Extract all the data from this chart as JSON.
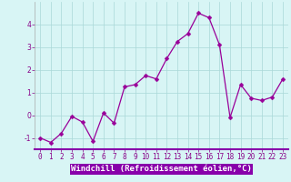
{
  "x": [
    0,
    1,
    2,
    3,
    4,
    5,
    6,
    7,
    8,
    9,
    10,
    11,
    12,
    13,
    14,
    15,
    16,
    17,
    18,
    19,
    20,
    21,
    22,
    23
  ],
  "y": [
    -1.0,
    -1.2,
    -0.8,
    -0.05,
    -0.3,
    -1.15,
    0.1,
    -0.35,
    1.25,
    1.35,
    1.75,
    1.6,
    2.5,
    3.25,
    3.6,
    4.5,
    4.3,
    3.1,
    -0.1,
    1.35,
    0.75,
    0.65,
    0.8,
    1.6
  ],
  "xlim": [
    -0.5,
    23.5
  ],
  "ylim": [
    -1.5,
    5.0
  ],
  "yticks": [
    -1,
    0,
    1,
    2,
    3,
    4
  ],
  "xticks": [
    0,
    1,
    2,
    3,
    4,
    5,
    6,
    7,
    8,
    9,
    10,
    11,
    12,
    13,
    14,
    15,
    16,
    17,
    18,
    19,
    20,
    21,
    22,
    23
  ],
  "xlabel": "Windchill (Refroidissement éolien,°C)",
  "line_color": "#990099",
  "marker": "D",
  "marker_size": 2.5,
  "bg_color": "#d8f5f5",
  "xlabel_bg_color": "#8800aa",
  "grid_color": "#aad8d8",
  "tick_label_fontsize": 5.5,
  "xlabel_fontsize": 6.5,
  "label_color": "#880088",
  "xlabel_text_color": "#ffffff"
}
